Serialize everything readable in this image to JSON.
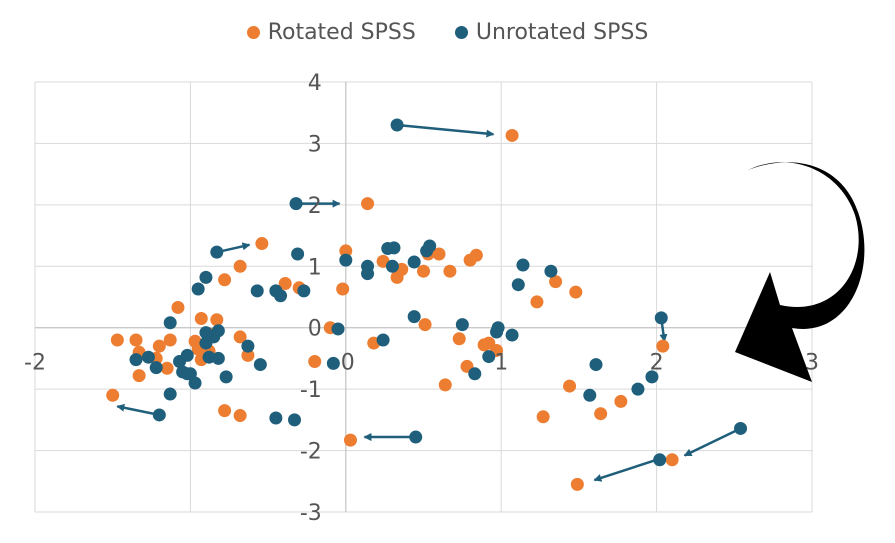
{
  "chart_data": {
    "type": "scatter",
    "title": "",
    "xlabel": "",
    "ylabel": "",
    "xlim": [
      -2,
      3
    ],
    "ylim": [
      -3,
      4
    ],
    "x_ticks": [
      "-2",
      "0",
      "1",
      "2",
      "3"
    ],
    "y_ticks": [
      "-3",
      "-2",
      "-1",
      "0",
      "1",
      "2",
      "3",
      "4"
    ],
    "grid": true,
    "legend_position": "top",
    "series": [
      {
        "name": "Rotated SPSS",
        "color": "#ED7D31",
        "points": [
          [
            1.07,
            3.13
          ],
          [
            0.14,
            2.02
          ],
          [
            -0.54,
            1.37
          ],
          [
            0.0,
            1.25
          ],
          [
            -0.02,
            0.63
          ],
          [
            -0.3,
            0.65
          ],
          [
            -0.39,
            0.72
          ],
          [
            0.24,
            1.08
          ],
          [
            0.33,
            0.82
          ],
          [
            0.36,
            0.95
          ],
          [
            0.5,
            0.92
          ],
          [
            0.6,
            1.2
          ],
          [
            0.67,
            0.92
          ],
          [
            0.8,
            1.1
          ],
          [
            0.84,
            1.18
          ],
          [
            0.53,
            1.2
          ],
          [
            1.23,
            0.42
          ],
          [
            1.35,
            0.75
          ],
          [
            1.48,
            0.58
          ],
          [
            -0.68,
            1.0
          ],
          [
            -0.78,
            0.78
          ],
          [
            -1.08,
            0.33
          ],
          [
            -1.13,
            -0.2
          ],
          [
            -1.2,
            -0.3
          ],
          [
            -1.22,
            -0.5
          ],
          [
            -1.15,
            -0.66
          ],
          [
            -1.33,
            -0.4
          ],
          [
            -1.35,
            -0.2
          ],
          [
            -1.47,
            -0.2
          ],
          [
            -1.33,
            -0.78
          ],
          [
            -1.5,
            -1.1
          ],
          [
            -0.93,
            0.15
          ],
          [
            -0.83,
            0.13
          ],
          [
            -0.68,
            -0.15
          ],
          [
            -0.63,
            -0.45
          ],
          [
            -0.93,
            -0.52
          ],
          [
            -0.95,
            -0.35
          ],
          [
            -0.97,
            -0.22
          ],
          [
            -0.88,
            -0.1
          ],
          [
            -0.88,
            -0.38
          ],
          [
            -0.78,
            -1.35
          ],
          [
            -0.68,
            -1.43
          ],
          [
            -0.2,
            -0.55
          ],
          [
            -0.1,
            0.0
          ],
          [
            0.03,
            -1.83
          ],
          [
            0.18,
            -0.25
          ],
          [
            0.51,
            0.05
          ],
          [
            0.64,
            -0.93
          ],
          [
            0.73,
            -0.18
          ],
          [
            0.78,
            -0.63
          ],
          [
            0.89,
            -0.28
          ],
          [
            0.92,
            -0.25
          ],
          [
            0.97,
            -0.37
          ],
          [
            1.44,
            -0.95
          ],
          [
            1.27,
            -1.45
          ],
          [
            1.64,
            -1.4
          ],
          [
            1.77,
            -1.2
          ],
          [
            1.49,
            -2.55
          ],
          [
            2.04,
            -0.3
          ],
          [
            2.1,
            -2.15
          ]
        ]
      },
      {
        "name": "Unrotated SPSS",
        "color": "#1F5F7B",
        "points": [
          [
            0.33,
            3.3
          ],
          [
            -0.32,
            2.02
          ],
          [
            -0.83,
            1.23
          ],
          [
            -0.31,
            1.2
          ],
          [
            0.0,
            1.1
          ],
          [
            0.14,
            1.0
          ],
          [
            0.14,
            0.88
          ],
          [
            0.27,
            1.29
          ],
          [
            0.3,
            1.0
          ],
          [
            0.31,
            1.3
          ],
          [
            0.44,
            1.07
          ],
          [
            0.52,
            1.25
          ],
          [
            0.54,
            1.33
          ],
          [
            1.14,
            1.02
          ],
          [
            1.11,
            0.7
          ],
          [
            1.32,
            0.92
          ],
          [
            -0.57,
            0.6
          ],
          [
            -0.45,
            0.6
          ],
          [
            -0.42,
            0.52
          ],
          [
            -0.27,
            0.6
          ],
          [
            -0.9,
            0.82
          ],
          [
            -0.95,
            0.63
          ],
          [
            -1.13,
            0.08
          ],
          [
            -0.9,
            -0.08
          ],
          [
            -0.82,
            -0.05
          ],
          [
            -0.85,
            -0.15
          ],
          [
            -0.9,
            -0.25
          ],
          [
            -0.88,
            -0.48
          ],
          [
            -0.82,
            -0.5
          ],
          [
            -0.63,
            -0.3
          ],
          [
            -1.07,
            -0.55
          ],
          [
            -1.02,
            -0.45
          ],
          [
            -1.05,
            -0.72
          ],
          [
            -1.02,
            -0.75
          ],
          [
            -1.0,
            -0.75
          ],
          [
            -0.97,
            -0.9
          ],
          [
            -0.77,
            -0.8
          ],
          [
            -1.27,
            -0.48
          ],
          [
            -1.22,
            -0.65
          ],
          [
            -1.35,
            -0.52
          ],
          [
            -1.13,
            -1.08
          ],
          [
            -1.2,
            -1.42
          ],
          [
            -0.55,
            -0.6
          ],
          [
            -0.45,
            -1.47
          ],
          [
            -0.33,
            -1.5
          ],
          [
            -0.05,
            -0.02
          ],
          [
            -0.08,
            -0.58
          ],
          [
            0.24,
            -0.2
          ],
          [
            0.44,
            0.18
          ],
          [
            0.75,
            0.05
          ],
          [
            0.83,
            -0.75
          ],
          [
            0.97,
            -0.07
          ],
          [
            0.98,
            0.0
          ],
          [
            0.92,
            -0.47
          ],
          [
            1.07,
            -0.12
          ],
          [
            1.61,
            -0.6
          ],
          [
            1.57,
            -1.1
          ],
          [
            1.88,
            -1.0
          ],
          [
            1.97,
            -0.8
          ],
          [
            2.03,
            0.16
          ],
          [
            2.02,
            -2.15
          ],
          [
            2.54,
            -1.64
          ],
          [
            0.45,
            -1.78
          ]
        ]
      }
    ],
    "arrows": [
      [
        0.33,
        3.3,
        0.95,
        3.15
      ],
      [
        -0.32,
        2.02,
        -0.04,
        2.02
      ],
      [
        -0.83,
        1.23,
        -0.62,
        1.35
      ],
      [
        -1.2,
        -1.42,
        -1.47,
        -1.28
      ],
      [
        0.45,
        -1.78,
        0.12,
        -1.78
      ],
      [
        2.03,
        0.16,
        2.05,
        -0.22
      ],
      [
        2.54,
        -1.64,
        2.18,
        -2.08
      ],
      [
        2.0,
        -2.15,
        1.6,
        -2.48
      ]
    ],
    "arrow_color": "#1F5F7B"
  }
}
